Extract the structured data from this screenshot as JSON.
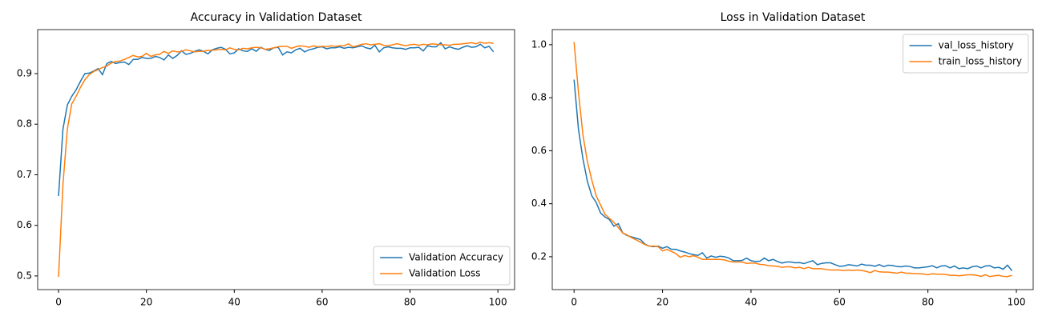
{
  "chart_data": [
    {
      "type": "line",
      "title": "Accuracy in Validation Dataset",
      "x": [
        0,
        1,
        2,
        3,
        4,
        5,
        6,
        7,
        8,
        9,
        10,
        11,
        12,
        13,
        14,
        15,
        16,
        17,
        18,
        19,
        20,
        21,
        22,
        23,
        24,
        25,
        26,
        27,
        28,
        29,
        30,
        31,
        32,
        33,
        34,
        35,
        36,
        37,
        38,
        39,
        40,
        41,
        42,
        43,
        44,
        45,
        46,
        47,
        48,
        49,
        50,
        51,
        52,
        53,
        54,
        55,
        56,
        57,
        58,
        59,
        60,
        61,
        62,
        63,
        64,
        65,
        66,
        67,
        68,
        69,
        70,
        71,
        72,
        73,
        74,
        75,
        76,
        77,
        78,
        79,
        80,
        81,
        82,
        83,
        84,
        85,
        86,
        87,
        88,
        89,
        90,
        91,
        92,
        93,
        94,
        95,
        96,
        97,
        98,
        99
      ],
      "series": [
        {
          "name": "Validation Accuracy",
          "color": "#1f77b4",
          "values": [
            0.658,
            0.79,
            0.838,
            0.855,
            0.868,
            0.885,
            0.9,
            0.901,
            0.905,
            0.91,
            0.898,
            0.92,
            0.924,
            0.92,
            0.922,
            0.923,
            0.918,
            0.928,
            0.928,
            0.932,
            0.93,
            0.93,
            0.934,
            0.932,
            0.927,
            0.937,
            0.93,
            0.936,
            0.945,
            0.938,
            0.94,
            0.944,
            0.947,
            0.944,
            0.939,
            0.947,
            0.95,
            0.952,
            0.948,
            0.939,
            0.941,
            0.949,
            0.945,
            0.944,
            0.949,
            0.944,
            0.952,
            0.948,
            0.946,
            0.951,
            0.952,
            0.937,
            0.943,
            0.941,
            0.947,
            0.95,
            0.943,
            0.947,
            0.949,
            0.952,
            0.953,
            0.949,
            0.951,
            0.951,
            0.953,
            0.95,
            0.952,
            0.951,
            0.953,
            0.955,
            0.951,
            0.949,
            0.956,
            0.943,
            0.951,
            0.953,
            0.951,
            0.95,
            0.95,
            0.948,
            0.951,
            0.951,
            0.952,
            0.945,
            0.955,
            0.953,
            0.953,
            0.961,
            0.949,
            0.953,
            0.95,
            0.948,
            0.952,
            0.955,
            0.952,
            0.953,
            0.958,
            0.951,
            0.954,
            0.943
          ]
        },
        {
          "name": "Validation Loss",
          "color": "#ff7f0e",
          "values": [
            0.498,
            0.68,
            0.79,
            0.84,
            0.855,
            0.873,
            0.888,
            0.898,
            0.904,
            0.908,
            0.912,
            0.915,
            0.921,
            0.924,
            0.925,
            0.928,
            0.932,
            0.936,
            0.933,
            0.934,
            0.94,
            0.934,
            0.937,
            0.938,
            0.944,
            0.94,
            0.945,
            0.943,
            0.944,
            0.947,
            0.945,
            0.943,
            0.944,
            0.944,
            0.946,
            0.946,
            0.947,
            0.948,
            0.947,
            0.951,
            0.948,
            0.947,
            0.95,
            0.949,
            0.951,
            0.952,
            0.951,
            0.948,
            0.949,
            0.951,
            0.953,
            0.954,
            0.954,
            0.95,
            0.953,
            0.955,
            0.954,
            0.952,
            0.955,
            0.953,
            0.954,
            0.953,
            0.955,
            0.954,
            0.955,
            0.955,
            0.959,
            0.953,
            0.955,
            0.958,
            0.959,
            0.957,
            0.958,
            0.959,
            0.956,
            0.955,
            0.957,
            0.959,
            0.957,
            0.955,
            0.957,
            0.958,
            0.956,
            0.958,
            0.957,
            0.959,
            0.958,
            0.957,
            0.957,
            0.956,
            0.958,
            0.958,
            0.959,
            0.96,
            0.961,
            0.959,
            0.962,
            0.96,
            0.961,
            0.96
          ]
        }
      ],
      "xlim": [
        -4.75,
        103.8
      ],
      "xticks": [
        0,
        20,
        40,
        60,
        80,
        100
      ],
      "ylim": [
        0.473,
        0.987
      ],
      "yticks": [
        0.5,
        0.6,
        0.7,
        0.8,
        0.9
      ],
      "legend": "lower right"
    },
    {
      "type": "line",
      "title": "Loss in Validation Dataset",
      "x": [
        0,
        1,
        2,
        3,
        4,
        5,
        6,
        7,
        8,
        9,
        10,
        11,
        12,
        13,
        14,
        15,
        16,
        17,
        18,
        19,
        20,
        21,
        22,
        23,
        24,
        25,
        26,
        27,
        28,
        29,
        30,
        31,
        32,
        33,
        34,
        35,
        36,
        37,
        38,
        39,
        40,
        41,
        42,
        43,
        44,
        45,
        46,
        47,
        48,
        49,
        50,
        51,
        52,
        53,
        54,
        55,
        56,
        57,
        58,
        59,
        60,
        61,
        62,
        63,
        64,
        65,
        66,
        67,
        68,
        69,
        70,
        71,
        72,
        73,
        74,
        75,
        76,
        77,
        78,
        79,
        80,
        81,
        82,
        83,
        84,
        85,
        86,
        87,
        88,
        89,
        90,
        91,
        92,
        93,
        94,
        95,
        96,
        97,
        98,
        99
      ],
      "series": [
        {
          "name": "val_loss_history",
          "color": "#1f77b4",
          "values": [
            0.868,
            0.68,
            0.57,
            0.485,
            0.43,
            0.405,
            0.365,
            0.35,
            0.34,
            0.315,
            0.325,
            0.29,
            0.28,
            0.275,
            0.27,
            0.265,
            0.248,
            0.24,
            0.238,
            0.24,
            0.232,
            0.238,
            0.228,
            0.228,
            0.222,
            0.218,
            0.212,
            0.208,
            0.205,
            0.215,
            0.195,
            0.203,
            0.198,
            0.202,
            0.2,
            0.195,
            0.185,
            0.185,
            0.186,
            0.195,
            0.185,
            0.182,
            0.183,
            0.195,
            0.185,
            0.19,
            0.182,
            0.176,
            0.18,
            0.18,
            0.177,
            0.178,
            0.174,
            0.18,
            0.185,
            0.17,
            0.175,
            0.177,
            0.177,
            0.17,
            0.164,
            0.165,
            0.17,
            0.168,
            0.165,
            0.172,
            0.168,
            0.168,
            0.164,
            0.17,
            0.163,
            0.168,
            0.167,
            0.163,
            0.162,
            0.165,
            0.163,
            0.158,
            0.158,
            0.16,
            0.162,
            0.166,
            0.158,
            0.165,
            0.166,
            0.158,
            0.165,
            0.155,
            0.158,
            0.155,
            0.162,
            0.165,
            0.158,
            0.165,
            0.166,
            0.158,
            0.16,
            0.153,
            0.168,
            0.147
          ]
        },
        {
          "name": "train_loss_history",
          "color": "#ff7f0e",
          "values": [
            1.01,
            0.82,
            0.66,
            0.56,
            0.49,
            0.43,
            0.395,
            0.36,
            0.345,
            0.33,
            0.31,
            0.29,
            0.282,
            0.272,
            0.264,
            0.255,
            0.246,
            0.24,
            0.24,
            0.238,
            0.222,
            0.228,
            0.22,
            0.212,
            0.198,
            0.205,
            0.2,
            0.204,
            0.198,
            0.19,
            0.19,
            0.19,
            0.19,
            0.19,
            0.188,
            0.183,
            0.18,
            0.18,
            0.18,
            0.175,
            0.176,
            0.176,
            0.171,
            0.17,
            0.166,
            0.165,
            0.164,
            0.16,
            0.162,
            0.162,
            0.158,
            0.16,
            0.155,
            0.16,
            0.155,
            0.155,
            0.155,
            0.152,
            0.15,
            0.15,
            0.15,
            0.148,
            0.15,
            0.148,
            0.15,
            0.148,
            0.145,
            0.14,
            0.148,
            0.143,
            0.142,
            0.142,
            0.14,
            0.138,
            0.142,
            0.138,
            0.138,
            0.136,
            0.136,
            0.135,
            0.132,
            0.136,
            0.134,
            0.134,
            0.133,
            0.13,
            0.13,
            0.128,
            0.13,
            0.132,
            0.132,
            0.13,
            0.126,
            0.132,
            0.125,
            0.128,
            0.13,
            0.126,
            0.125,
            0.13
          ]
        }
      ],
      "xlim": [
        -4.93,
        103.8
      ],
      "xticks": [
        0,
        20,
        40,
        60,
        80,
        100
      ],
      "ylim": [
        0.076,
        1.057
      ],
      "yticks": [
        0.2,
        0.4,
        0.6,
        0.8,
        {
          "value": 1,
          "label": "1.0"
        }
      ],
      "legend": "upper right"
    }
  ]
}
